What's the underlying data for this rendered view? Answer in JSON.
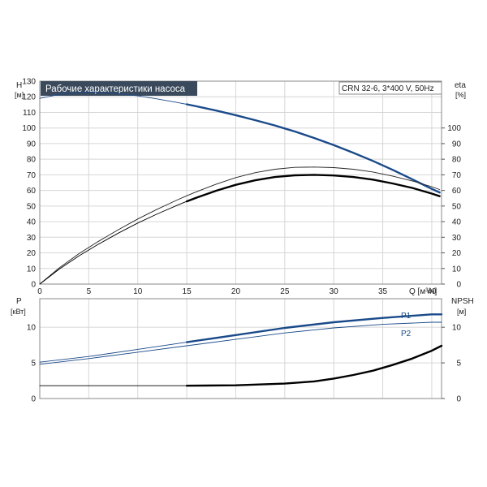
{
  "chart_data": [
    {
      "type": "line",
      "title": "Рабочие характеристики насоса",
      "model_label": "CRN 32-6, 3*400 V, 50Hz",
      "xlabel": "Q [м³/ч]",
      "x_ticks": [
        "0",
        "5",
        "10",
        "15",
        "20",
        "25",
        "30",
        "35",
        "40"
      ],
      "xlim": [
        0,
        41
      ],
      "left_axis": {
        "label": "H",
        "unit": "[м]",
        "ylim": [
          0,
          130
        ],
        "ticks": [
          "0",
          "10",
          "20",
          "30",
          "40",
          "50",
          "60",
          "70",
          "80",
          "90",
          "100",
          "110",
          "120",
          "130"
        ]
      },
      "right_axis": {
        "label": "eta",
        "unit": "[%]",
        "ylim": [
          0,
          130
        ],
        "ticks": [
          "0",
          "10",
          "20",
          "30",
          "40",
          "50",
          "60",
          "70",
          "80",
          "90",
          "100"
        ]
      },
      "grid": true,
      "series": [
        {
          "key": "H",
          "axis": "left",
          "color": "#1a4a8a",
          "thick_from": 15,
          "x": [
            0,
            2,
            4,
            5,
            6,
            8,
            10,
            12,
            14,
            15,
            16,
            18,
            20,
            22,
            24,
            25,
            26,
            28,
            30,
            32,
            34,
            36,
            38,
            40,
            40.8
          ],
          "y": [
            119,
            121.5,
            122.8,
            123,
            122.9,
            122.1,
            120.6,
            118.6,
            116.4,
            115.2,
            113.9,
            111.2,
            108.2,
            105,
            101.6,
            99.7,
            97.8,
            93.6,
            89,
            84.1,
            78.9,
            73.2,
            67.2,
            61,
            58.7
          ]
        },
        {
          "key": "eta1",
          "axis": "right",
          "color": "#222222",
          "thick_from": null,
          "x": [
            0,
            2,
            4,
            6,
            8,
            10,
            12,
            14,
            15,
            16,
            18,
            20,
            22,
            24,
            26,
            28,
            30,
            32,
            34,
            36,
            38,
            40,
            40.8
          ],
          "y": [
            0,
            10.4,
            19.5,
            27.4,
            34.8,
            41.7,
            48,
            53.8,
            56.6,
            59.2,
            64,
            68.2,
            71.4,
            73.6,
            74.8,
            75,
            74.6,
            73.6,
            71.8,
            69.2,
            66.1,
            62.4,
            60.6
          ]
        },
        {
          "key": "eta2",
          "axis": "right",
          "color": "#000000",
          "thick_from": 15,
          "x": [
            0,
            2,
            4,
            6,
            8,
            10,
            12,
            14,
            15,
            16,
            18,
            20,
            22,
            24,
            26,
            28,
            30,
            32,
            34,
            36,
            38,
            40,
            40.8
          ],
          "y": [
            0,
            9.6,
            18.1,
            25.6,
            32.6,
            39.1,
            45,
            50.4,
            53,
            55.4,
            59.8,
            63.6,
            66.5,
            68.6,
            69.7,
            70,
            69.6,
            68.6,
            66.9,
            64.5,
            61.6,
            58,
            56.3
          ]
        }
      ]
    },
    {
      "type": "line",
      "xlim": [
        0,
        41
      ],
      "left_axis": {
        "label": "P",
        "unit": "[кВт]",
        "ylim": [
          0,
          14
        ],
        "ticks": [
          "0",
          "5",
          "10"
        ]
      },
      "right_axis": {
        "label": "NPSH",
        "unit": "[м]",
        "ylim": [
          0,
          14
        ],
        "ticks": [
          "0",
          "5",
          "10"
        ]
      },
      "grid": true,
      "series": [
        {
          "name": "P1",
          "key": "P1",
          "axis": "left",
          "color": "#1a4a8a",
          "thick_from": 15,
          "x": [
            0,
            5,
            10,
            15,
            20,
            25,
            30,
            35,
            40,
            41
          ],
          "y": [
            5.1,
            5.9,
            6.9,
            7.9,
            8.9,
            9.9,
            10.7,
            11.3,
            11.8,
            11.8
          ]
        },
        {
          "name": "P2",
          "key": "P2",
          "axis": "left",
          "color": "#1a4a8a",
          "thick_from": null,
          "x": [
            0,
            5,
            10,
            15,
            20,
            25,
            30,
            35,
            40,
            41
          ],
          "y": [
            4.8,
            5.6,
            6.5,
            7.4,
            8.3,
            9.2,
            9.9,
            10.4,
            10.7,
            10.7
          ]
        },
        {
          "key": "NPSH",
          "axis": "right",
          "color": "#000000",
          "thick_from": 15,
          "x": [
            0,
            5,
            10,
            15,
            20,
            25,
            28,
            30,
            32,
            34,
            36,
            38,
            40,
            41
          ],
          "y": [
            1.8,
            1.8,
            1.8,
            1.8,
            1.85,
            2.1,
            2.4,
            2.8,
            3.3,
            3.9,
            4.7,
            5.6,
            6.7,
            7.4
          ]
        }
      ]
    }
  ]
}
